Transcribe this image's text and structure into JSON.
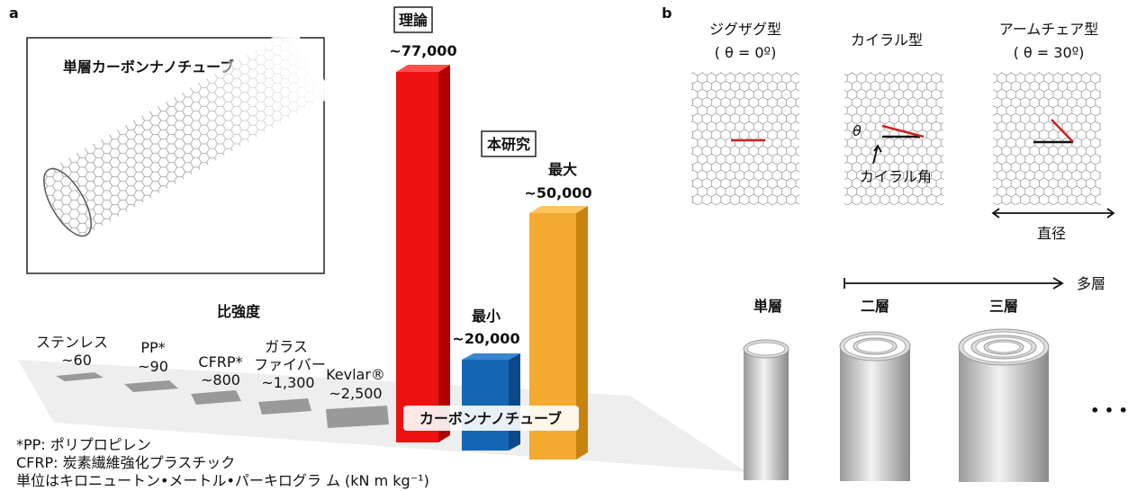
{
  "panel_a": {
    "label": "a",
    "inset_title": "単層カーボンナノチューブ",
    "heading": "比強度",
    "materials": [
      {
        "name": [
          "ステンレス"
        ],
        "value": "~60"
      },
      {
        "name": [
          "PP*"
        ],
        "value": "~90"
      },
      {
        "name": [
          "CFRP*"
        ],
        "value": "~800"
      },
      {
        "name": [
          "ガラス",
          "ファイバー"
        ],
        "value": "~1,300"
      },
      {
        "name": [
          "Kevlar®"
        ],
        "value": "~2,500"
      }
    ],
    "theory": {
      "label": "理論",
      "value": "~77,000"
    },
    "this_study": "本研究",
    "minimum": {
      "label": "最小",
      "value": "~20,000"
    },
    "maximum": {
      "label": "最大",
      "value": "~50,000"
    },
    "cnt_label": "カーボンナノチューブ",
    "footnotes": [
      "*PP: ポリプロピレン",
      " CFRP: 炭素繊維強化プラスチック",
      "単位はキロニュートン•メートル•パーキログラ ム (kN m kg⁻¹)"
    ]
  },
  "panel_b": {
    "label": "b",
    "types": [
      {
        "name": "ジグザグ型",
        "angle": "( θ = 0º)"
      },
      {
        "name": "カイラル型"
      },
      {
        "name": "アームチェア型",
        "angle": "( θ = 30º)"
      }
    ],
    "theta": "θ",
    "chiral_angle": "カイラル角",
    "diameter": "直径",
    "multilayer": "多層",
    "walls": [
      "単層",
      "二層",
      "三層"
    ],
    "ellipsis": "• • •"
  }
}
